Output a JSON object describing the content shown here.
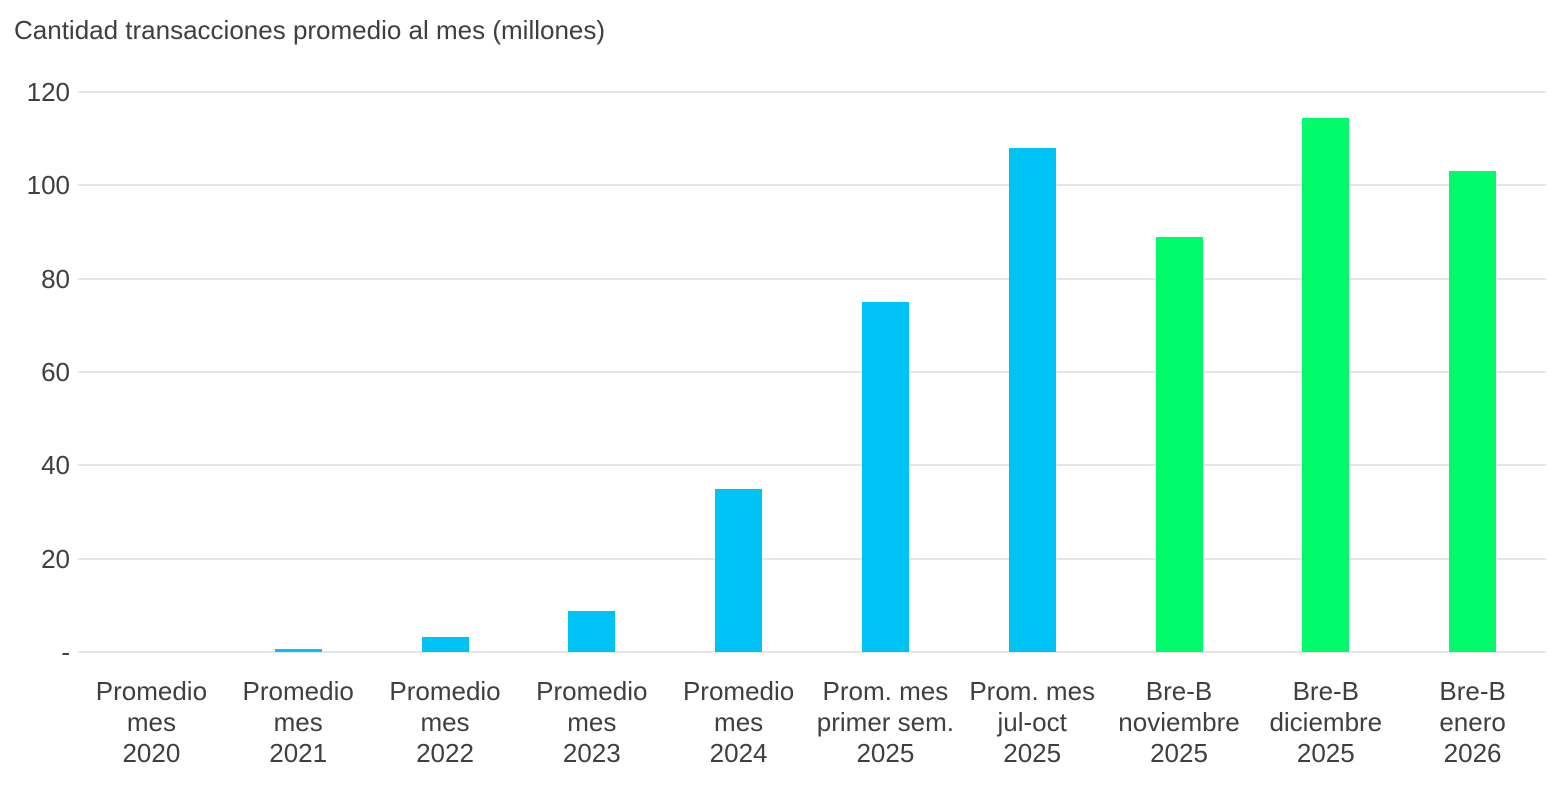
{
  "chart_data": {
    "type": "bar",
    "title": "Cantidad transacciones promedio al mes (millones)",
    "categories": [
      [
        "Promedio",
        "mes",
        "2020"
      ],
      [
        "Promedio",
        "mes",
        "2021"
      ],
      [
        "Promedio",
        "mes",
        "2022"
      ],
      [
        "Promedio",
        "mes",
        "2023"
      ],
      [
        "Promedio",
        "mes",
        "2024"
      ],
      [
        "Prom. mes",
        "primer sem.",
        "2025"
      ],
      [
        "Prom. mes",
        "jul-oct",
        "2025"
      ],
      [
        "Bre-B",
        "noviembre",
        "2025"
      ],
      [
        "Bre-B",
        "diciembre",
        "2025"
      ],
      [
        "Bre-B",
        "enero",
        "2026"
      ]
    ],
    "values": [
      0,
      0.7,
      3.3,
      8.7,
      35,
      75,
      108,
      89,
      114.5,
      103
    ],
    "bar_colors": [
      "#00c3f5",
      "#00c3f5",
      "#00c3f5",
      "#00c3f5",
      "#00c3f5",
      "#00c3f5",
      "#00c3f5",
      "#00fa69",
      "#00fa69",
      "#00fa69"
    ],
    "yticks": [
      {
        "value": 0,
        "label": "-"
      },
      {
        "value": 20,
        "label": "20"
      },
      {
        "value": 40,
        "label": "40"
      },
      {
        "value": 60,
        "label": "60"
      },
      {
        "value": 80,
        "label": "80"
      },
      {
        "value": 100,
        "label": "100"
      },
      {
        "value": 120,
        "label": "120"
      }
    ],
    "ylim": [
      0,
      120
    ],
    "xlabel": "",
    "ylabel": "",
    "legend": "none",
    "grid": "horizontal",
    "colors": {
      "bar_blue": "#00c3f5",
      "bar_green": "#00fa69",
      "grid": "#e6e6e6",
      "text": "#3f3f3f",
      "background": "#ffffff"
    }
  }
}
